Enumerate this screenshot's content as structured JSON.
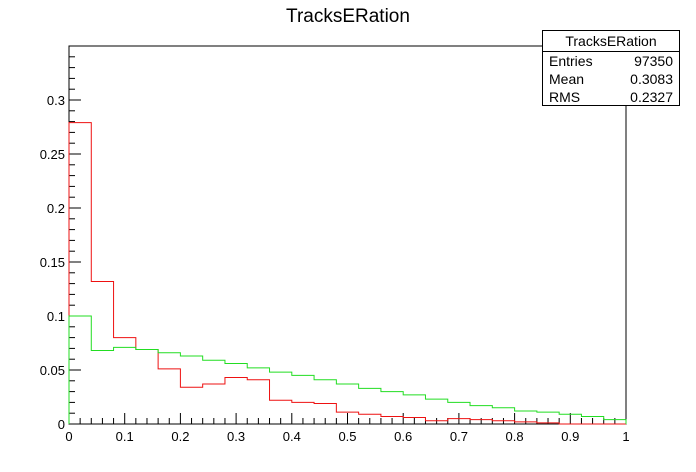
{
  "chart_data": {
    "type": "histogram",
    "title": "TracksERation",
    "xlim": [
      0,
      1
    ],
    "ylim": [
      0,
      0.35
    ],
    "x_ticks": [
      "0",
      "0.1",
      "0.2",
      "0.3",
      "0.4",
      "0.5",
      "0.6",
      "0.7",
      "0.8",
      "0.9",
      "1"
    ],
    "y_ticks": [
      "0",
      "0.05",
      "0.1",
      "0.15",
      "0.2",
      "0.25",
      "0.3"
    ],
    "bin_width": 0.04,
    "series": [
      {
        "color": "#ee1111",
        "values": [
          0.279,
          0.132,
          0.08,
          0.069,
          0.051,
          0.034,
          0.037,
          0.043,
          0.041,
          0.022,
          0.02,
          0.019,
          0.011,
          0.009,
          0.007,
          0.006,
          0.003,
          0.005,
          0.004,
          0.003,
          0.002,
          0.001,
          0.0,
          0.0,
          0.0
        ]
      },
      {
        "color": "#22dd22",
        "values": [
          0.1,
          0.068,
          0.071,
          0.069,
          0.066,
          0.063,
          0.059,
          0.056,
          0.052,
          0.048,
          0.045,
          0.041,
          0.037,
          0.033,
          0.03,
          0.027,
          0.023,
          0.02,
          0.017,
          0.015,
          0.012,
          0.011,
          0.009,
          0.007,
          0.004
        ]
      }
    ]
  },
  "stats": {
    "title": "TracksERation",
    "entries_label": "Entries",
    "entries": "97350",
    "mean_label": "Mean",
    "mean": "0.3083",
    "rms_label": "RMS",
    "rms": "0.2327"
  }
}
